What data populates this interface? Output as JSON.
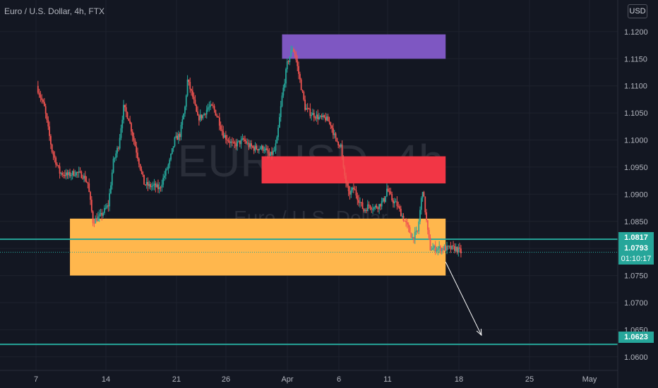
{
  "header": {
    "symbol_title": "Euro / U.S. Dollar, 4h, FTX",
    "currency_button": "USD"
  },
  "watermark": {
    "symbol": "EURUSD, 4h",
    "name": "Euro / U.S. Dollar"
  },
  "chart_data": {
    "type": "candlestick",
    "y_ticks": [
      "1.1200",
      "1.1150",
      "1.1100",
      "1.1050",
      "1.1000",
      "1.0950",
      "1.0900",
      "1.0850",
      "1.0800",
      "1.0750",
      "1.0700",
      "1.0650",
      "1.0600"
    ],
    "x_ticks": [
      "7",
      "14",
      "21",
      "26",
      "Apr",
      "6",
      "11",
      "18",
      "25",
      "May"
    ],
    "ylim": [
      1.0575,
      1.1235
    ],
    "grid": true,
    "price_path": [
      [
        0,
        1.11
      ],
      [
        3,
        1.106
      ],
      [
        6,
        1.098
      ],
      [
        9,
        1.094
      ],
      [
        12,
        1.0935
      ],
      [
        15,
        1.094
      ],
      [
        18,
        1.0935
      ],
      [
        20,
        1.092
      ],
      [
        22,
        1.085
      ],
      [
        25,
        1.086
      ],
      [
        28,
        1.088
      ],
      [
        30,
        1.096
      ],
      [
        32,
        1.099
      ],
      [
        34,
        1.106
      ],
      [
        36,
        1.104
      ],
      [
        38,
        1.1
      ],
      [
        40,
        1.096
      ],
      [
        42,
        1.092
      ],
      [
        44,
        1.0915
      ],
      [
        46,
        1.0915
      ],
      [
        48,
        1.091
      ],
      [
        50,
        1.0935
      ],
      [
        52,
        1.096
      ],
      [
        54,
        1.1
      ],
      [
        56,
        1.101
      ],
      [
        58,
        1.106
      ],
      [
        59,
        1.111
      ],
      [
        61,
        1.108
      ],
      [
        63,
        1.104
      ],
      [
        65,
        1.1045
      ],
      [
        67,
        1.106
      ],
      [
        69,
        1.106
      ],
      [
        71,
        1.104
      ],
      [
        73,
        1.101
      ],
      [
        75,
        1.1
      ],
      [
        77,
        1.099
      ],
      [
        79,
        1.0995
      ],
      [
        81,
        1.1
      ],
      [
        83,
        1.099
      ],
      [
        85,
        1.0985
      ],
      [
        87,
        1.0985
      ],
      [
        89,
        1.0985
      ],
      [
        91,
        1.097
      ],
      [
        93,
        1.098
      ],
      [
        94,
        1.1
      ],
      [
        96,
        1.108
      ],
      [
        98,
        1.114
      ],
      [
        100,
        1.117
      ],
      [
        101,
        1.116
      ],
      [
        103,
        1.111
      ],
      [
        105,
        1.106
      ],
      [
        107,
        1.105
      ],
      [
        109,
        1.1045
      ],
      [
        111,
        1.104
      ],
      [
        113,
        1.104
      ],
      [
        115,
        1.103
      ],
      [
        117,
        1.1
      ],
      [
        119,
        1.099
      ],
      [
        120,
        1.0945
      ],
      [
        122,
        1.09
      ],
      [
        124,
        1.091
      ],
      [
        126,
        1.089
      ],
      [
        128,
        1.087
      ],
      [
        130,
        1.088
      ],
      [
        132,
        1.0875
      ],
      [
        134,
        1.088
      ],
      [
        136,
        1.089
      ],
      [
        137,
        1.091
      ],
      [
        139,
        1.089
      ],
      [
        141,
        1.088
      ],
      [
        143,
        1.086
      ],
      [
        145,
        1.084
      ],
      [
        147,
        1.082
      ],
      [
        149,
        1.083
      ],
      [
        151,
        1.091
      ],
      [
        153,
        1.083
      ],
      [
        154,
        1.08
      ],
      [
        156,
        1.08
      ],
      [
        158,
        1.08
      ],
      [
        160,
        1.08
      ],
      [
        162,
        1.08
      ],
      [
        164,
        1.08
      ],
      [
        166,
        1.0793
      ]
    ],
    "horizontal_lines": [
      {
        "price": 1.0817,
        "label": "1.0817",
        "color": "#26a69a"
      },
      {
        "price": 1.0623,
        "label": "1.0623",
        "color": "#26a69a"
      }
    ],
    "last_price": {
      "price": 1.0793,
      "label": "1.0793",
      "countdown": "01:10:17",
      "color": "#26a69a"
    },
    "zones": [
      {
        "color": "#7e57c2",
        "from_bar": 96,
        "to_bar": 160,
        "top": 1.1195,
        "bottom": 1.115
      },
      {
        "color": "#f23645",
        "from_bar": 88,
        "to_bar": 160,
        "top": 1.097,
        "bottom": 1.092
      },
      {
        "color": "#ffb74d",
        "from_bar": 13,
        "to_bar": 160,
        "top": 1.0855,
        "bottom": 1.075
      }
    ],
    "arrow": {
      "from_bar": 160,
      "from_price": 1.0775,
      "to_bar": 174,
      "to_price": 1.064,
      "color": "#ffffff"
    },
    "colors": {
      "up": "#26a69a",
      "down": "#ef5350",
      "background": "#131722",
      "grid": "#1e222d",
      "axis_text": "#b2b5be"
    }
  }
}
